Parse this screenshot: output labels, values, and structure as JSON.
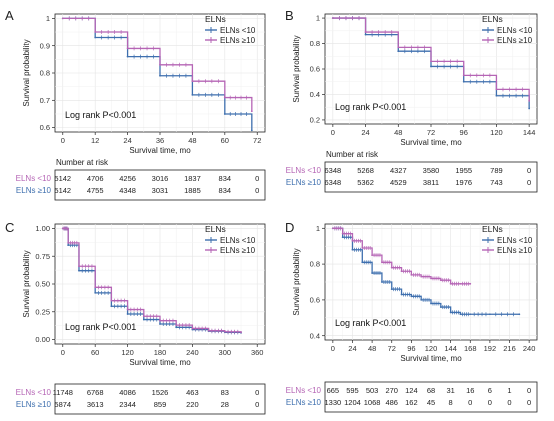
{
  "chart_data": [
    {
      "panel": "A",
      "type": "line",
      "xlabel": "Survival time, mo",
      "ylabel": "Survival probability",
      "xticks": [
        0,
        12,
        24,
        36,
        48,
        60,
        72
      ],
      "yticks": [
        0.6,
        0.7,
        0.8,
        0.9,
        1.0
      ],
      "xlim": [
        0,
        72
      ],
      "ylim": [
        0.6,
        1.0
      ],
      "grid": true,
      "legend_title": "ELNs",
      "legend_position": "top-right",
      "annotation": "Log rank P<0.001",
      "series": [
        {
          "name": "ELNs <10",
          "color": "#3e6fae",
          "x": [
            0,
            12,
            24,
            36,
            48,
            60,
            70
          ],
          "y": [
            1.0,
            0.93,
            0.86,
            0.79,
            0.72,
            0.65,
            0.59
          ]
        },
        {
          "name": "ELNs ≥10",
          "color": "#b565b5",
          "x": [
            0,
            12,
            24,
            36,
            48,
            60,
            70
          ],
          "y": [
            1.0,
            0.95,
            0.89,
            0.83,
            0.77,
            0.71,
            0.66
          ]
        }
      ],
      "risk_table": {
        "title": "Number at risk",
        "rows": [
          {
            "label": "ELNs <10",
            "color": "#b565b5",
            "values": [
              "5142",
              "4706",
              "4256",
              "3016",
              "1837",
              "834",
              "0"
            ]
          },
          {
            "label": "ELNs ≥10",
            "color": "#3e6fae",
            "values": [
              "5142",
              "4755",
              "4348",
              "3031",
              "1885",
              "834",
              "0"
            ]
          }
        ]
      }
    },
    {
      "panel": "B",
      "type": "line",
      "xlabel": "Survival time, mo",
      "ylabel": "Survival probability",
      "xticks": [
        0,
        24,
        48,
        72,
        96,
        120,
        144
      ],
      "yticks": [
        0.2,
        0.4,
        0.6,
        0.8,
        1.0
      ],
      "xlim": [
        0,
        144
      ],
      "ylim": [
        0.2,
        1.0
      ],
      "grid": true,
      "legend_title": "ELNs",
      "legend_position": "top-right",
      "annotation": "Log rank P<0.001",
      "series": [
        {
          "name": "ELNs <10",
          "color": "#3e6fae",
          "x": [
            0,
            24,
            48,
            72,
            96,
            120,
            144
          ],
          "y": [
            1.0,
            0.87,
            0.74,
            0.62,
            0.5,
            0.39,
            0.29
          ]
        },
        {
          "name": "ELNs ≥10",
          "color": "#b565b5",
          "x": [
            0,
            24,
            48,
            72,
            96,
            120,
            144
          ],
          "y": [
            1.0,
            0.89,
            0.77,
            0.66,
            0.55,
            0.44,
            0.35
          ]
        }
      ],
      "risk_table": {
        "title": "Number at risk",
        "rows": [
          {
            "label": "ELNs <10",
            "color": "#b565b5",
            "values": [
              "6348",
              "5268",
              "4327",
              "3580",
              "1955",
              "789",
              "0"
            ]
          },
          {
            "label": "ELNs ≥10",
            "color": "#3e6fae",
            "values": [
              "6348",
              "5362",
              "4529",
              "3811",
              "1976",
              "743",
              "0"
            ]
          }
        ]
      }
    },
    {
      "panel": "C",
      "type": "line",
      "xlabel": "Survival time, mo",
      "ylabel": "Survival probability",
      "xticks": [
        0,
        60,
        120,
        180,
        240,
        300,
        360
      ],
      "yticks": [
        0.0,
        0.25,
        0.5,
        0.75,
        1.0
      ],
      "ytick_labels": [
        "0.00",
        "0.25",
        "0.50",
        "0.75",
        "1.00"
      ],
      "xlim": [
        0,
        360
      ],
      "ylim": [
        0,
        1.0
      ],
      "grid": true,
      "legend_title": "ELNs",
      "legend_position": "top-right",
      "annotation": "Log rank P<0.001",
      "series": [
        {
          "name": "ELNs <10",
          "color": "#3e6fae",
          "x": [
            0,
            10,
            30,
            60,
            90,
            120,
            150,
            180,
            210,
            240,
            270,
            300,
            330
          ],
          "y": [
            1.0,
            0.85,
            0.62,
            0.42,
            0.3,
            0.23,
            0.18,
            0.14,
            0.11,
            0.09,
            0.075,
            0.065,
            0.06
          ]
        },
        {
          "name": "ELNs ≥10",
          "color": "#b565b5",
          "x": [
            0,
            10,
            30,
            60,
            90,
            120,
            150,
            180,
            210,
            240,
            270,
            300,
            330
          ],
          "y": [
            1.0,
            0.87,
            0.66,
            0.47,
            0.35,
            0.27,
            0.21,
            0.17,
            0.13,
            0.1,
            0.08,
            0.07,
            0.065
          ]
        }
      ],
      "risk_table": {
        "title": "",
        "rows": [
          {
            "label": "ELNs <10",
            "color": "#b565b5",
            "values": [
              "11748",
              "6768",
              "4086",
              "1526",
              "463",
              "83",
              "0"
            ]
          },
          {
            "label": "ELNs ≥10",
            "color": "#3e6fae",
            "values": [
              "5874",
              "3613",
              "2344",
              "859",
              "220",
              "28",
              "0"
            ]
          }
        ]
      }
    },
    {
      "panel": "D",
      "type": "line",
      "xlabel": "Survival time, mo",
      "ylabel": "Survival probability",
      "xticks": [
        0,
        24,
        48,
        72,
        96,
        120,
        144,
        168,
        192,
        216,
        240
      ],
      "yticks": [
        0.4,
        0.6,
        0.8,
        1.0
      ],
      "xtick_labels": [
        "0",
        "24",
        "48",
        "72",
        "96",
        "120",
        "144",
        "168",
        "192",
        "216",
        "240"
      ],
      "xlim": [
        0,
        240
      ],
      "ylim": [
        0.4,
        1.0
      ],
      "grid": true,
      "legend_title": "ELNs",
      "legend_position": "top-right",
      "annotation": "Log rank P<0.001",
      "series": [
        {
          "name": "ELNs <10",
          "color": "#3e6fae",
          "x": [
            0,
            12,
            24,
            36,
            48,
            60,
            72,
            84,
            96,
            108,
            120,
            132,
            144,
            156,
            168,
            192,
            228
          ],
          "y": [
            1.0,
            0.95,
            0.88,
            0.81,
            0.75,
            0.7,
            0.66,
            0.63,
            0.62,
            0.6,
            0.58,
            0.56,
            0.53,
            0.52,
            0.52,
            0.52,
            0.52
          ]
        },
        {
          "name": "ELNs ≥10",
          "color": "#b565b5",
          "x": [
            0,
            12,
            24,
            36,
            48,
            60,
            72,
            84,
            96,
            108,
            120,
            132,
            144,
            156,
            168
          ],
          "y": [
            1.0,
            0.97,
            0.93,
            0.89,
            0.85,
            0.81,
            0.78,
            0.76,
            0.74,
            0.73,
            0.72,
            0.71,
            0.69,
            0.69,
            0.69
          ]
        }
      ],
      "risk_table": {
        "title": "",
        "rows": [
          {
            "label": "ELNs <10",
            "color": "#b565b5",
            "values": [
              "665",
              "595",
              "503",
              "270",
              "124",
              "68",
              "31",
              "16",
              "6",
              "1",
              "0"
            ]
          },
          {
            "label": "ELNs ≥10",
            "color": "#3e6fae",
            "values": [
              "1330",
              "1204",
              "1068",
              "486",
              "162",
              "45",
              "8",
              "0",
              "0",
              "0",
              "0"
            ]
          }
        ]
      }
    }
  ]
}
